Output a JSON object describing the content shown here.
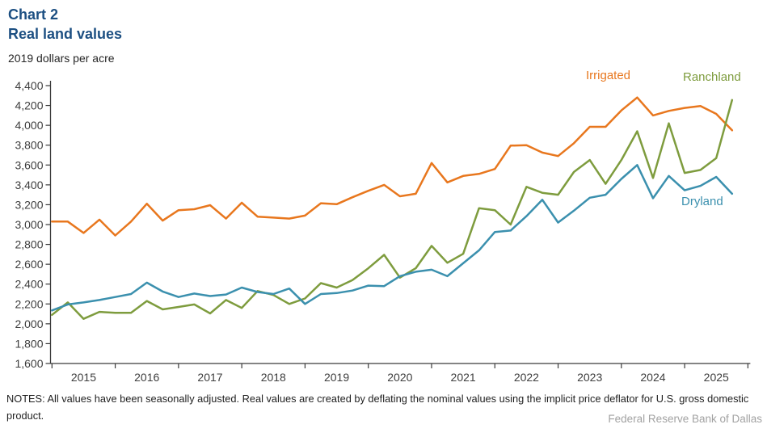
{
  "header": {
    "chart_label": "Chart 2",
    "title": "Real land values",
    "units": "2019 dollars per acre",
    "title_color": "#1C4F82"
  },
  "footer": {
    "notes": "NOTES: All values have been seasonally adjusted. Real values are created by deflating the nominal values using the implicit price deflator for U.S. gross domestic product.",
    "source": "Federal Reserve Bank of Dallas"
  },
  "chart_data": {
    "type": "line",
    "title": "Real land values",
    "ylabel": "2019 dollars per acre",
    "ylim": [
      1600,
      4400
    ],
    "y_ticks": [
      1600,
      1800,
      2000,
      2200,
      2400,
      2600,
      2800,
      3000,
      3200,
      3400,
      3600,
      3800,
      4000,
      4200,
      4400
    ],
    "x_tick_labels": [
      "2015",
      "2016",
      "2017",
      "2018",
      "2019",
      "2020",
      "2021",
      "2022",
      "2023",
      "2024",
      "2025"
    ],
    "grid": false,
    "legend_position": "inline-labels-right",
    "x": [
      "2015 Q1",
      "2015 Q2",
      "2015 Q3",
      "2015 Q4",
      "2016 Q1",
      "2016 Q2",
      "2016 Q3",
      "2016 Q4",
      "2017 Q1",
      "2017 Q2",
      "2017 Q3",
      "2017 Q4",
      "2018 Q1",
      "2018 Q2",
      "2018 Q3",
      "2018 Q4",
      "2019 Q1",
      "2019 Q2",
      "2019 Q3",
      "2019 Q4",
      "2020 Q1",
      "2020 Q2",
      "2020 Q3",
      "2020 Q4",
      "2021 Q1",
      "2021 Q2",
      "2021 Q3",
      "2021 Q4",
      "2022 Q1",
      "2022 Q2",
      "2022 Q3",
      "2022 Q4",
      "2023 Q1",
      "2023 Q2",
      "2023 Q3",
      "2023 Q4",
      "2024 Q1",
      "2024 Q2",
      "2024 Q3",
      "2024 Q4",
      "2025 Q1",
      "2025 Q2",
      "2025 Q3",
      "2025 Q4"
    ],
    "series": [
      {
        "name": "Irrigated",
        "color": "#E8771E",
        "values": [
          3030,
          3030,
          2915,
          3050,
          2890,
          3030,
          3210,
          3040,
          3145,
          3155,
          3195,
          3060,
          3220,
          3080,
          3070,
          3060,
          3090,
          3215,
          3205,
          3275,
          3340,
          3400,
          3285,
          3310,
          3620,
          3425,
          3490,
          3510,
          3560,
          3795,
          3800,
          3725,
          3690,
          3820,
          3985,
          3985,
          4150,
          4280,
          4100,
          4145,
          4175,
          4195,
          4115,
          3950
        ]
      },
      {
        "name": "Ranchland",
        "color": "#7E9C3E",
        "values": [
          2090,
          2215,
          2050,
          2120,
          2110,
          2110,
          2230,
          2145,
          2170,
          2195,
          2105,
          2240,
          2160,
          2330,
          2290,
          2200,
          2255,
          2410,
          2365,
          2440,
          2560,
          2695,
          2465,
          2560,
          2785,
          2615,
          2705,
          3165,
          3145,
          3000,
          3380,
          3320,
          3300,
          3530,
          3650,
          3410,
          3650,
          3940,
          3470,
          4020,
          3520,
          3550,
          3670,
          4255
        ]
      },
      {
        "name": "Dryland",
        "color": "#3B90AE",
        "values": [
          2135,
          2195,
          2215,
          2240,
          2270,
          2300,
          2415,
          2325,
          2270,
          2305,
          2280,
          2295,
          2365,
          2320,
          2300,
          2355,
          2200,
          2300,
          2310,
          2335,
          2385,
          2380,
          2480,
          2525,
          2545,
          2480,
          2610,
          2740,
          2925,
          2940,
          3085,
          3250,
          3020,
          3140,
          3270,
          3300,
          3460,
          3600,
          3265,
          3490,
          3345,
          3390,
          3480,
          3310
        ]
      }
    ]
  }
}
